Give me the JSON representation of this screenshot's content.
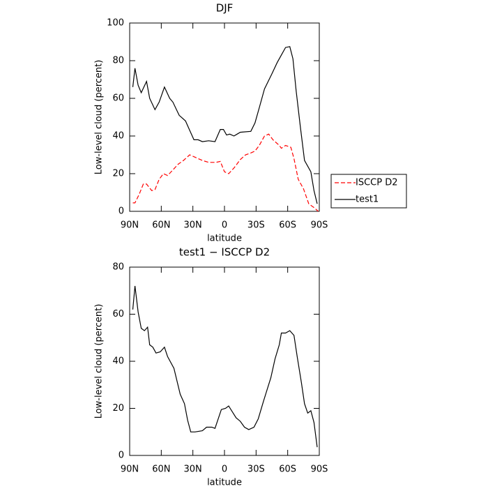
{
  "chart_data": [
    {
      "type": "line",
      "title": "DJF",
      "xlabel": "latitude",
      "ylabel": "Low-level cloud (percent)",
      "xlim": [
        90,
        -90
      ],
      "xticks": [
        {
          "value": 90,
          "label": "90N"
        },
        {
          "value": 60,
          "label": "60N"
        },
        {
          "value": 30,
          "label": "30N"
        },
        {
          "value": 0,
          "label": "0"
        },
        {
          "value": -30,
          "label": "30S"
        },
        {
          "value": -60,
          "label": "60S"
        },
        {
          "value": -90,
          "label": "90S"
        }
      ],
      "ylim": [
        0,
        100
      ],
      "yticks": [
        0,
        20,
        40,
        60,
        80,
        100
      ],
      "legend": true,
      "series": [
        {
          "name": "ISCCP D2",
          "color": "#ff0000",
          "dashed": true,
          "x": [
            87,
            85,
            81,
            77,
            74,
            69,
            66,
            62,
            58,
            54,
            49,
            44,
            39,
            33,
            29,
            21,
            15,
            8,
            4,
            0,
            -4,
            -9,
            -15,
            -20,
            -25,
            -29,
            -33,
            -38,
            -42,
            -46,
            -52,
            -54,
            -58,
            -63,
            -66,
            -70,
            -75,
            -80,
            -85,
            -89
          ],
          "values": [
            4.5,
            4.5,
            9,
            14.5,
            14.5,
            11,
            11.5,
            17,
            20,
            19,
            22,
            25,
            27,
            30,
            29,
            27,
            26,
            26,
            26.5,
            21,
            20,
            23,
            27.5,
            30,
            31,
            32,
            35,
            40,
            41,
            38,
            35,
            33.5,
            35,
            34,
            28,
            17,
            12,
            4,
            2,
            0
          ]
        },
        {
          "name": "test1",
          "color": "#000000",
          "dashed": false,
          "x": [
            87,
            85,
            82,
            79,
            74,
            71,
            66,
            62,
            57,
            52,
            49,
            43,
            37,
            33,
            29,
            25,
            21,
            15,
            9,
            4,
            1,
            -2,
            -5,
            -9,
            -12,
            -15,
            -25,
            -29,
            -33,
            -38,
            -45,
            -50,
            -55,
            -58,
            -62,
            -65,
            -68,
            -72,
            -76,
            -82,
            -85,
            -88
          ],
          "values": [
            66,
            76,
            67,
            63,
            69,
            60,
            54,
            58,
            66,
            60,
            58,
            51,
            48,
            43,
            38,
            38,
            37,
            37.5,
            37,
            43.5,
            43.5,
            40.5,
            41,
            40,
            41,
            42,
            42.5,
            47,
            55,
            65,
            73,
            79,
            84,
            87,
            87.5,
            81,
            64,
            45,
            27,
            21,
            11,
            4
          ]
        }
      ]
    },
    {
      "type": "line",
      "title": "test1 − ISCCP D2",
      "xlabel": "latitude",
      "ylabel": "Low-level cloud (percent)",
      "xlim": [
        90,
        -90
      ],
      "xticks": [
        {
          "value": 90,
          "label": "90N"
        },
        {
          "value": 60,
          "label": "60N"
        },
        {
          "value": 30,
          "label": "30N"
        },
        {
          "value": 0,
          "label": "0"
        },
        {
          "value": -30,
          "label": "30S"
        },
        {
          "value": -60,
          "label": "60S"
        },
        {
          "value": -90,
          "label": "90S"
        }
      ],
      "ylim": [
        0,
        80
      ],
      "yticks": [
        0,
        20,
        40,
        60,
        80
      ],
      "legend": false,
      "series": [
        {
          "color": "#000000",
          "dashed": false,
          "x": [
            87,
            85,
            82,
            79,
            76,
            73,
            71,
            68,
            65,
            61,
            57,
            54,
            48,
            42,
            38,
            35,
            32,
            28,
            21,
            17,
            12,
            9,
            3,
            -1,
            -4,
            -11,
            -15,
            -19,
            -23,
            -28,
            -32,
            -37,
            -44,
            -48,
            -52,
            -54,
            -58,
            -62,
            -66,
            -69,
            -73,
            -76,
            -79,
            -82,
            -85,
            -88
          ],
          "values": [
            62,
            72,
            61,
            54,
            53,
            54.5,
            47,
            46,
            43.5,
            44,
            46,
            42,
            37,
            26,
            22,
            15,
            10,
            10,
            10.5,
            12,
            12,
            11.5,
            19.5,
            20,
            21,
            16,
            14.5,
            12,
            11,
            12,
            15.5,
            23,
            33,
            41,
            47,
            52,
            52,
            53,
            51,
            42,
            31,
            22,
            18,
            19,
            14,
            3.5
          ]
        }
      ]
    }
  ]
}
